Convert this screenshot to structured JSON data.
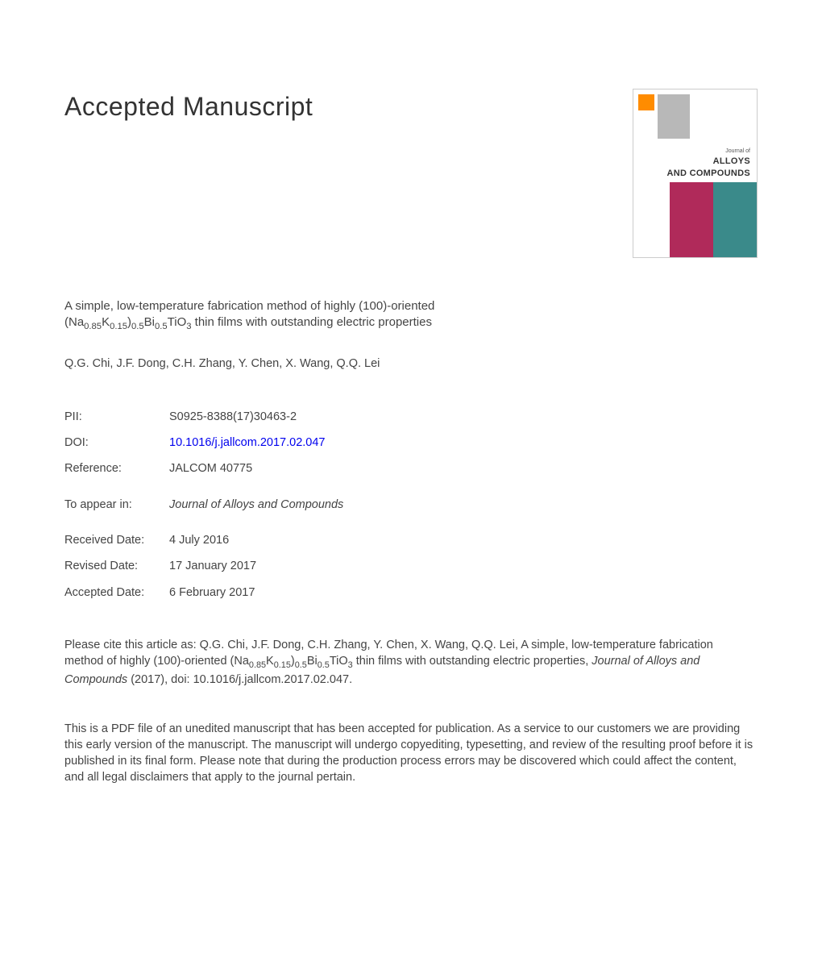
{
  "header": {
    "title": "Accepted Manuscript"
  },
  "cover": {
    "journal_prefix": "Journal of",
    "journal_name_1": "ALLOYS",
    "journal_name_2": "AND COMPOUNDS",
    "colors": {
      "pink": "#b02a5a",
      "teal": "#3a8a8a",
      "gray": "#b8b8b8",
      "orange": "#ff8c00"
    }
  },
  "article": {
    "title_part1": "A simple, low-temperature fabrication method of highly (100)-oriented (Na",
    "title_sub1": "0.85",
    "title_part2": "K",
    "title_sub2": "0.15",
    "title_part3": ")",
    "title_sub3": "0.5",
    "title_part4": "Bi",
    "title_sub4": "0.5",
    "title_part5": "TiO",
    "title_sub5": "3",
    "title_part6": " thin films with outstanding electric properties",
    "authors": "Q.G. Chi, J.F. Dong, C.H. Zhang, Y. Chen, X. Wang, Q.Q. Lei"
  },
  "meta": {
    "pii_label": "PII:",
    "pii_value": "S0925-8388(17)30463-2",
    "doi_label": "DOI:",
    "doi_value": "10.1016/j.jallcom.2017.02.047",
    "ref_label": "Reference:",
    "ref_value": "JALCOM 40775",
    "appear_label": "To appear in:",
    "appear_value": "Journal of Alloys and Compounds",
    "received_label": "Received Date:",
    "received_value": "4 July 2016",
    "revised_label": "Revised Date:",
    "revised_value": "17 January 2017",
    "accepted_label": "Accepted Date:",
    "accepted_value": "6 February 2017"
  },
  "citation": {
    "prefix": "Please cite this article as: Q.G. Chi, J.F. Dong, C.H. Zhang, Y. Chen, X. Wang, Q.Q. Lei, A simple, low-temperature fabrication method of highly (100)-oriented (Na",
    "sub1": "0.85",
    "p2": "K",
    "sub2": "0.15",
    "p3": ")",
    "sub3": "0.5",
    "p4": "Bi",
    "sub4": "0.5",
    "p5": "TiO",
    "sub5": "3",
    "p6": " thin films with outstanding electric properties, ",
    "journal": "Journal of Alloys and Compounds",
    "suffix": " (2017), doi: 10.1016/j.jallcom.2017.02.047."
  },
  "disclaimer": {
    "text": "This is a PDF file of an unedited manuscript that has been accepted for publication. As a service to our customers we are providing this early version of the manuscript. The manuscript will undergo copyediting, typesetting, and review of the resulting proof before it is published in its final form. Please note that during the production process errors may be discovered which could affect the content, and all legal disclaimers that apply to the journal pertain."
  }
}
